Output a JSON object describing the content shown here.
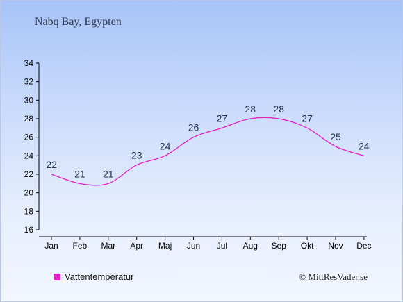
{
  "chart_data": {
    "type": "line",
    "title": "Nabq Bay, Egypten",
    "categories": [
      "Jan",
      "Feb",
      "Mar",
      "Apr",
      "Maj",
      "Jun",
      "Jul",
      "Aug",
      "Sep",
      "Okt",
      "Nov",
      "Dec"
    ],
    "series": [
      {
        "name": "Vattentemperatur",
        "values": [
          22,
          21,
          21,
          23,
          24,
          26,
          27,
          28,
          28,
          27,
          25,
          24
        ],
        "color": "#e020c8"
      }
    ],
    "ylim": [
      16,
      34
    ],
    "yticks": [
      16,
      18,
      20,
      22,
      24,
      26,
      28,
      30,
      32,
      34
    ],
    "grid": false,
    "legend_position": "bottom-left"
  },
  "credit": "© MittResVader.se"
}
